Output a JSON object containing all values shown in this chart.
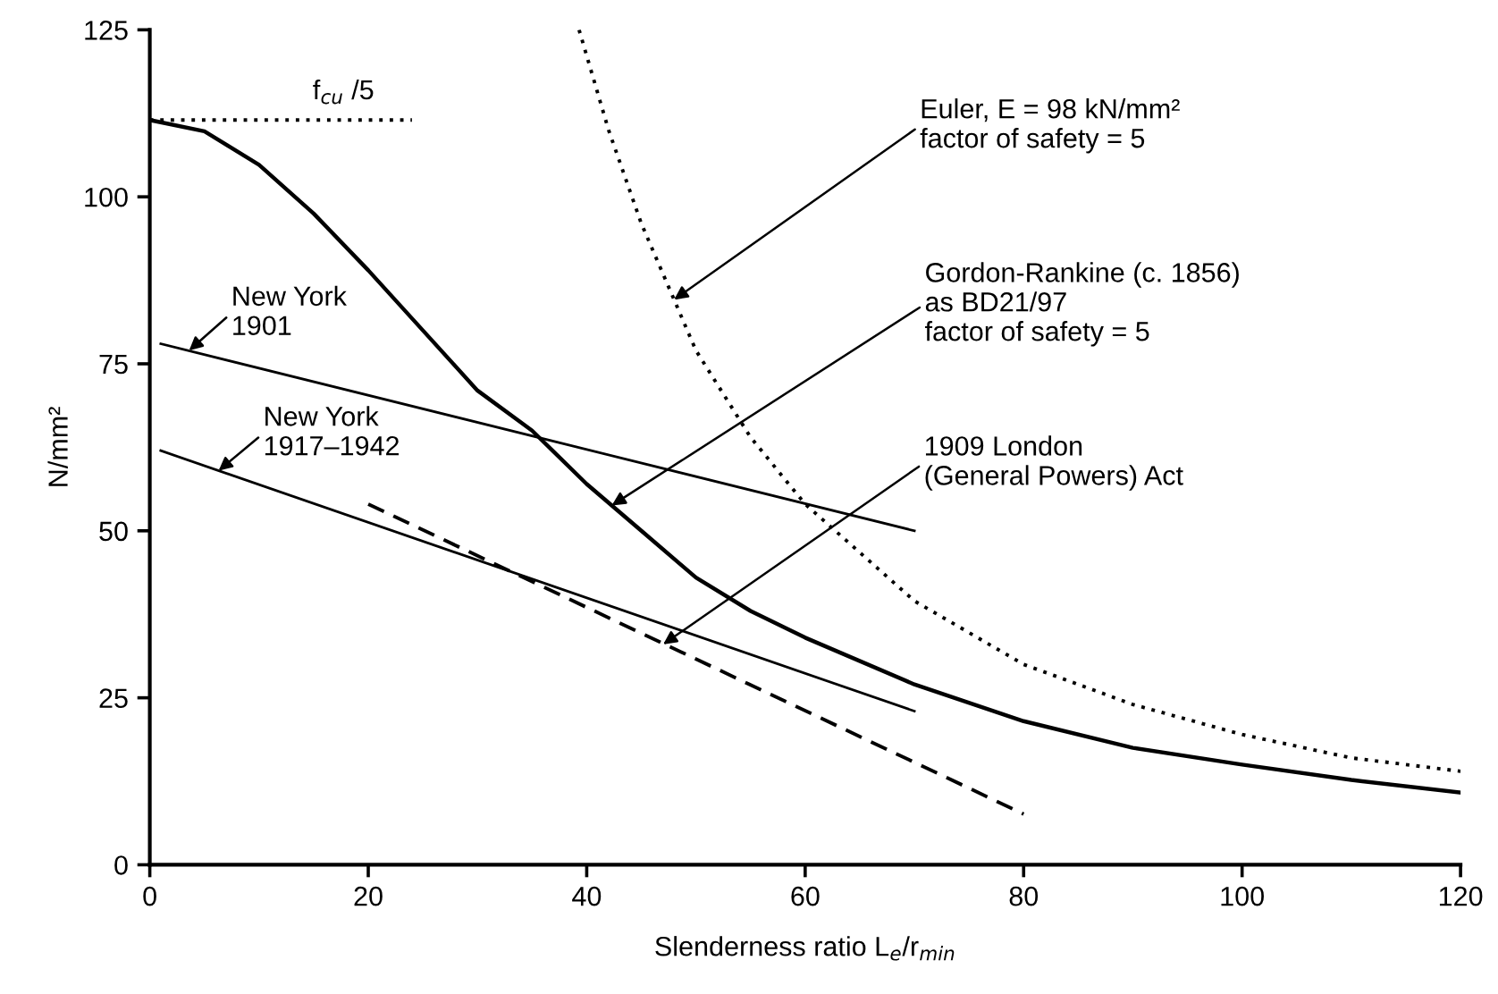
{
  "chart_data": {
    "type": "line",
    "xlabel": "Slenderness ratio L$_{e}$/r$_{min}$",
    "ylabel": "N/mm²",
    "xlim": [
      0,
      120
    ],
    "xticks": [
      0,
      20,
      40,
      60,
      80,
      100,
      120
    ],
    "ylim": [
      0,
      125
    ],
    "yticks": [
      0,
      25,
      50,
      75,
      100,
      125
    ],
    "grid": false,
    "legend": false,
    "marker": "none",
    "series": [
      {
        "name": "f$_{cu}$ /5",
        "color": "#000000",
        "line_style": "dotted",
        "x": [
          0,
          24
        ],
        "values": [
          111.5,
          111.5
        ]
      },
      {
        "color": "#000000",
        "line_style": "solid",
        "x": [
          0,
          5,
          10,
          15,
          20,
          25,
          30,
          35,
          40,
          45,
          50,
          55,
          60,
          70,
          80,
          90,
          100,
          110,
          120
        ],
        "values": [
          111.5,
          109.8,
          104.8,
          97.5,
          89,
          80,
          71,
          65,
          57,
          50,
          43,
          38,
          34,
          27,
          21.5,
          17.5,
          15,
          12.7,
          10.8
        ]
      },
      {
        "color": "#000000",
        "line_style": "dotted",
        "x": [
          39.3,
          42,
          45,
          50,
          55,
          60,
          70,
          80,
          90,
          100,
          110,
          120
        ],
        "values": [
          125,
          110,
          96,
          77,
          64,
          54,
          39.5,
          30,
          24,
          19.5,
          16,
          14
        ]
      },
      {
        "color": "#000000",
        "line_style": "solid",
        "x": [
          1,
          70
        ],
        "values": [
          78,
          50
        ]
      },
      {
        "color": "#000000",
        "line_style": "solid",
        "x": [
          1,
          70
        ],
        "values": [
          62,
          23
        ]
      },
      {
        "color": "#000000",
        "line_style": "dashed",
        "x": [
          20,
          80
        ],
        "values": [
          54,
          7.6
        ]
      }
    ],
    "annotations": [
      {
        "text": "New York\n1901",
        "x": 3.6,
        "y": 77
      },
      {
        "text": "New York\n1917–1942",
        "x": 6.3,
        "y": 59
      },
      {
        "text": "Euler, E = 98 kN/mm²\nfactor of safety = 5",
        "x": 48,
        "y": 84.6
      },
      {
        "text": "Gordon-Rankine (c. 1856)\nas BD21/97\nfactor of safety = 5",
        "x": 42.3,
        "y": 53.8
      },
      {
        "text": "1909 London\n(General Powers) Act",
        "x": 47,
        "y": 33
      }
    ]
  }
}
